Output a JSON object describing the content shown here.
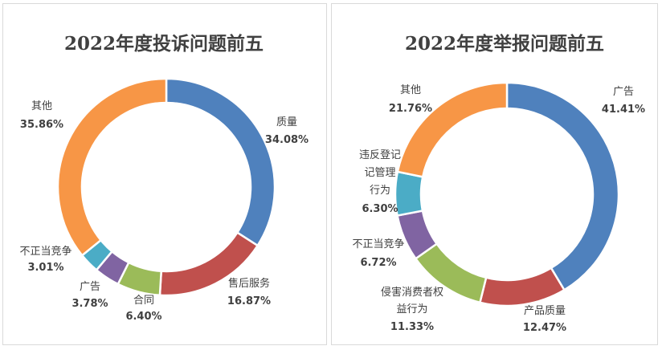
{
  "colors": {
    "blue": "#4f81bd",
    "red": "#c0504d",
    "green": "#9bbb59",
    "purple": "#8064a2",
    "cyan": "#4bacc6",
    "orange": "#f79646",
    "text": "#404040"
  },
  "chart_data": [
    {
      "type": "pie",
      "style": "donut",
      "title": "2022年度投诉问题前五",
      "slices": [
        {
          "name": "质量",
          "value": 34.08,
          "label": "34.08%",
          "color": "#4f81bd"
        },
        {
          "name": "售后服务",
          "value": 16.87,
          "label": "16.87%",
          "color": "#c0504d"
        },
        {
          "name": "合同",
          "value": 6.4,
          "label": "6.40%",
          "color": "#9bbb59"
        },
        {
          "name": "广告",
          "value": 3.78,
          "label": "3.78%",
          "color": "#8064a2"
        },
        {
          "name": "不正当竞争",
          "value": 3.01,
          "label": "3.01%",
          "color": "#4bacc6"
        },
        {
          "name": "其他",
          "value": 35.86,
          "label": "35.86%",
          "color": "#f79646"
        }
      ]
    },
    {
      "type": "pie",
      "style": "donut",
      "title": "2022年度举报问题前五",
      "slices": [
        {
          "name": "广告",
          "value": 41.41,
          "label": "41.41%",
          "color": "#4f81bd"
        },
        {
          "name": "产品质量",
          "value": 12.47,
          "label": "12.47%",
          "color": "#c0504d"
        },
        {
          "name": "侵害消费者权益行为",
          "value": 11.33,
          "label": "11.33%",
          "color": "#9bbb59"
        },
        {
          "name": "不正当竞争",
          "value": 6.72,
          "label": "6.72%",
          "color": "#8064a2"
        },
        {
          "name": "违反登记管理行为",
          "value": 6.3,
          "label": "6.30%",
          "color": "#4bacc6"
        },
        {
          "name": "其他",
          "value": 21.76,
          "label": "21.76%",
          "color": "#f79646"
        }
      ]
    }
  ]
}
